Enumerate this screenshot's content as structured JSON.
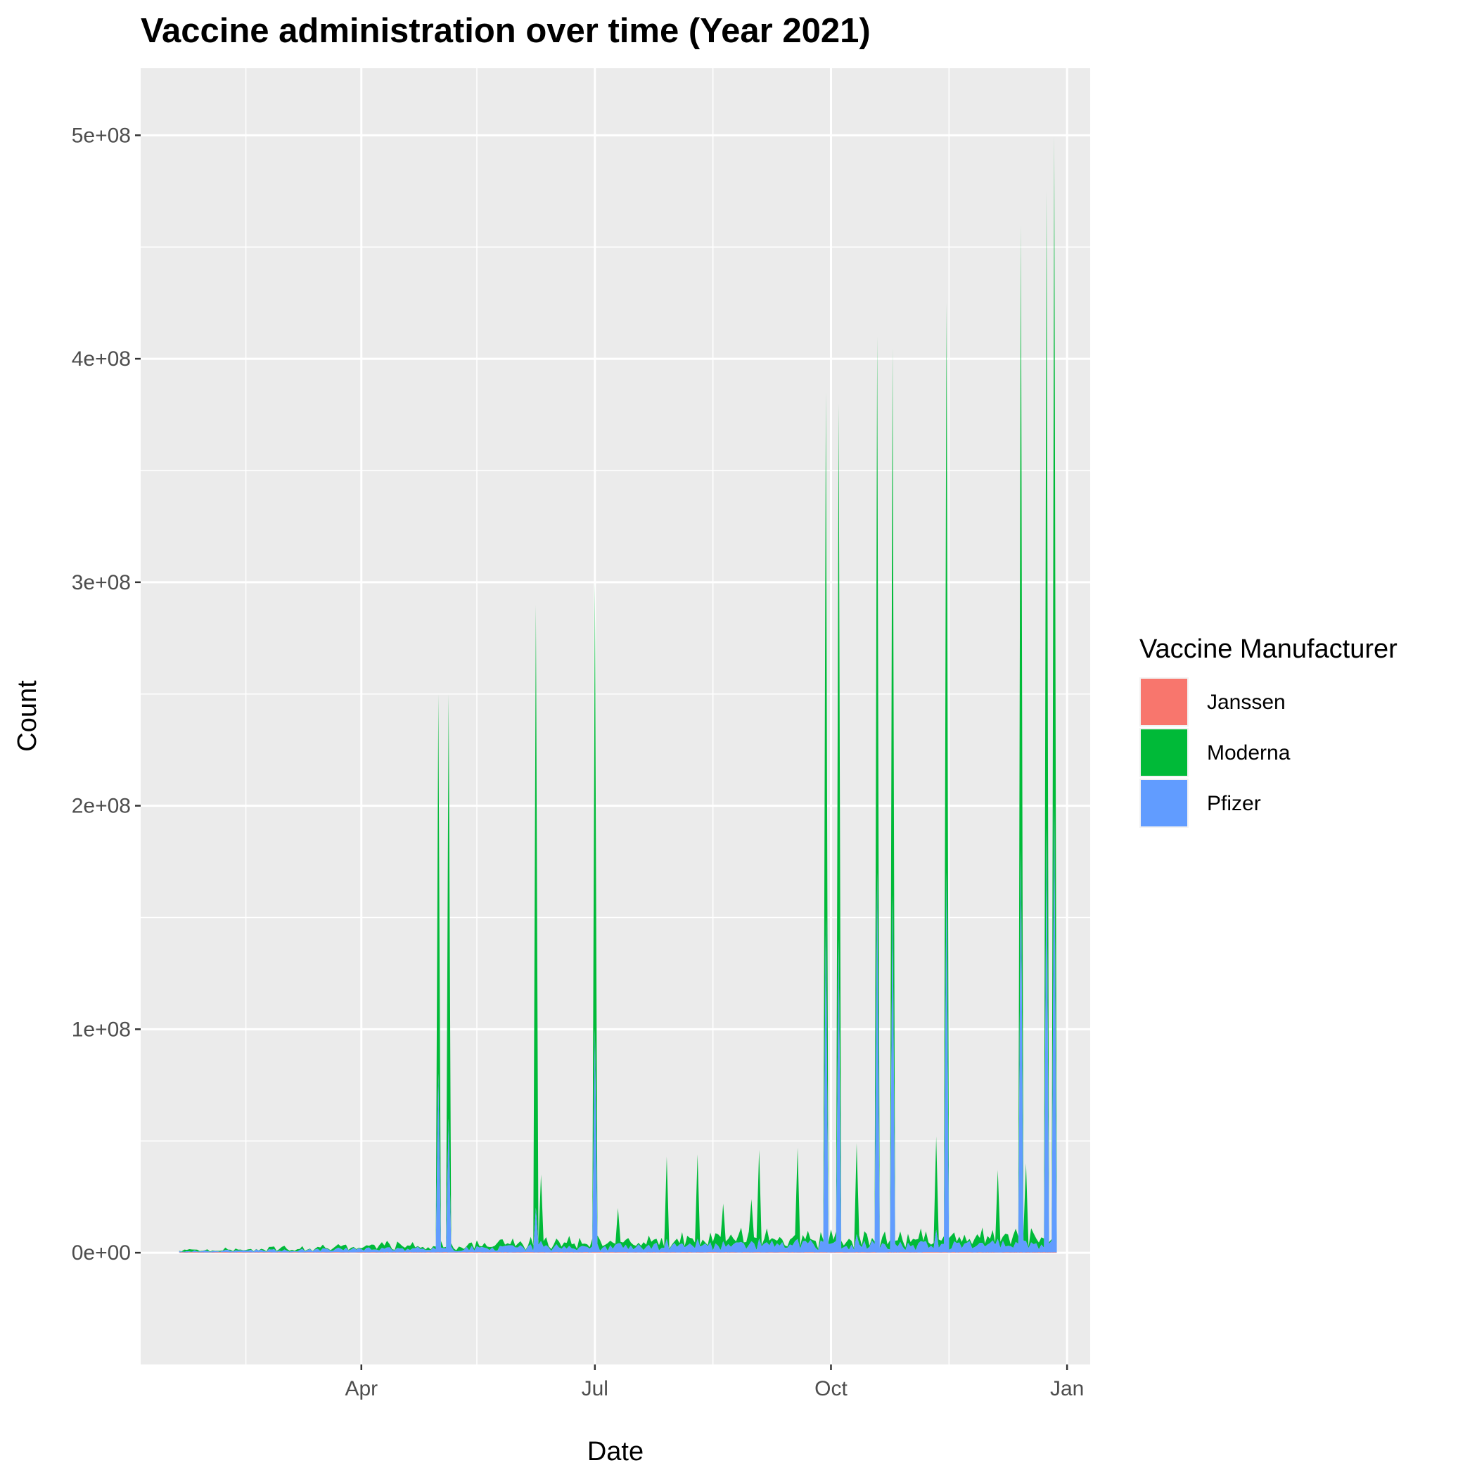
{
  "chart_data": {
    "type": "area",
    "stacked": true,
    "title": "Vaccine administration over time (Year 2021)",
    "xlabel": "Date",
    "ylabel": "Count",
    "x_range": [
      "2021-01-05",
      "2022-01-10"
    ],
    "x_data_range": [
      "2021-01-20",
      "2021-12-28"
    ],
    "ylim": [
      -50000000,
      530000000
    ],
    "x_ticks": [
      {
        "date": "2021-04-01",
        "label": "Apr"
      },
      {
        "date": "2021-07-01",
        "label": "Jul"
      },
      {
        "date": "2021-10-01",
        "label": "Oct"
      },
      {
        "date": "2022-01-01",
        "label": "Jan"
      }
    ],
    "x_minor_ticks": [
      "2021-02-15",
      "2021-05-16",
      "2021-08-16",
      "2021-11-16"
    ],
    "y_ticks": [
      {
        "value": 0,
        "label": "0e+00"
      },
      {
        "value": 100000000,
        "label": "1e+08"
      },
      {
        "value": 200000000,
        "label": "2e+08"
      },
      {
        "value": 300000000,
        "label": "3e+08"
      },
      {
        "value": 400000000,
        "label": "4e+08"
      },
      {
        "value": 500000000,
        "label": "5e+08"
      }
    ],
    "y_minor_ticks": [
      50000000,
      150000000,
      250000000,
      350000000,
      450000000
    ],
    "grid": true,
    "legend": {
      "title": "Vaccine Manufacturer",
      "position": "right",
      "entries": [
        {
          "label": "Janssen",
          "color": "#F8766D"
        },
        {
          "label": "Moderna",
          "color": "#00BA38"
        },
        {
          "label": "Pfizer",
          "color": "#619CFF"
        }
      ]
    },
    "baseline": {
      "start": "2021-01-20",
      "end": "2021-12-28",
      "janssen_base": 200000,
      "pfizer_range": [
        800000,
        5500000
      ],
      "moderna_extra_range": [
        500000,
        7000000
      ]
    },
    "spikes": [
      {
        "date": "2021-05-01",
        "pfizer": 80000000,
        "total": 250000000
      },
      {
        "date": "2021-05-05",
        "pfizer": 60000000,
        "total": 250000000
      },
      {
        "date": "2021-06-08",
        "pfizer": 20000000,
        "total": 290000000
      },
      {
        "date": "2021-06-10",
        "pfizer": 5000000,
        "total": 35000000
      },
      {
        "date": "2021-07-01",
        "pfizer": 100000000,
        "total": 300000000
      },
      {
        "date": "2021-07-10",
        "pfizer": 4000000,
        "total": 20000000
      },
      {
        "date": "2021-07-29",
        "pfizer": 6000000,
        "total": 43000000
      },
      {
        "date": "2021-08-10",
        "pfizer": 6000000,
        "total": 44000000
      },
      {
        "date": "2021-08-20",
        "pfizer": 5000000,
        "total": 22000000
      },
      {
        "date": "2021-08-31",
        "pfizer": 5000000,
        "total": 24000000
      },
      {
        "date": "2021-09-03",
        "pfizer": 6000000,
        "total": 46000000
      },
      {
        "date": "2021-09-18",
        "pfizer": 6000000,
        "total": 47000000
      },
      {
        "date": "2021-09-29",
        "pfizer": 150000000,
        "total": 385000000
      },
      {
        "date": "2021-10-04",
        "pfizer": 140000000,
        "total": 380000000
      },
      {
        "date": "2021-10-11",
        "pfizer": 8000000,
        "total": 49000000
      },
      {
        "date": "2021-10-19",
        "pfizer": 170000000,
        "total": 410000000
      },
      {
        "date": "2021-10-25",
        "pfizer": 160000000,
        "total": 405000000
      },
      {
        "date": "2021-11-11",
        "pfizer": 10000000,
        "total": 52000000
      },
      {
        "date": "2021-11-15",
        "pfizer": 170000000,
        "total": 425000000
      },
      {
        "date": "2021-12-05",
        "pfizer": 6000000,
        "total": 37000000
      },
      {
        "date": "2021-12-14",
        "pfizer": 180000000,
        "total": 460000000
      },
      {
        "date": "2021-12-16",
        "pfizer": 5000000,
        "total": 40000000
      },
      {
        "date": "2021-12-24",
        "pfizer": 190000000,
        "total": 475000000
      },
      {
        "date": "2021-12-27",
        "pfizer": 200000000,
        "total": 500000000
      }
    ]
  }
}
